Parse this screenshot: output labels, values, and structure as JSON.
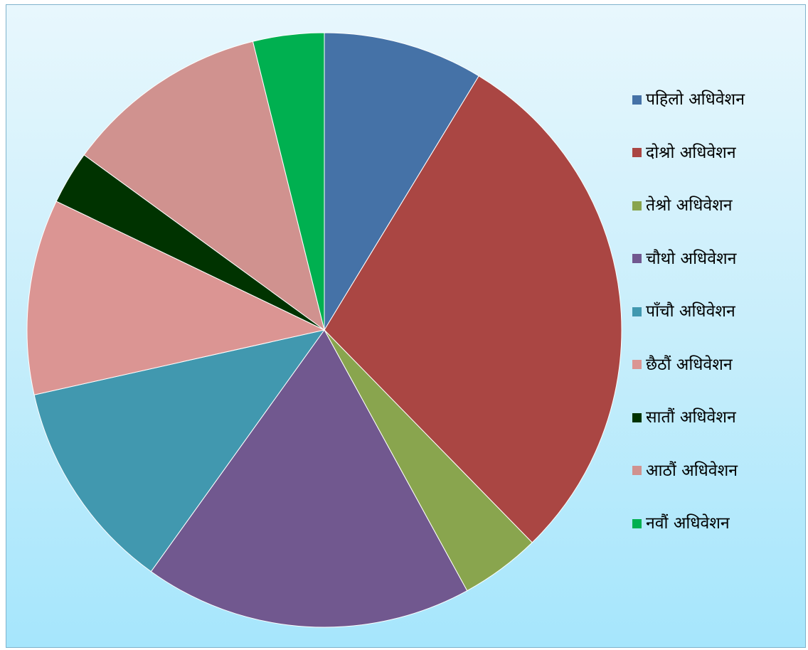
{
  "chart_data": {
    "type": "pie",
    "title": "",
    "legend_position": "right",
    "start_angle_deg": 0,
    "direction": "clockwise",
    "slices": [
      {
        "label": "पहिलो अधिवेशन",
        "value": 9.0,
        "color": "#4572a7"
      },
      {
        "label": "दोश्रो अधिवेशन",
        "value": 30.0,
        "color": "#aa4643"
      },
      {
        "label": "तेश्रो अधिवेशन",
        "value": 4.5,
        "color": "#89a54e"
      },
      {
        "label": "चौथो अधिवेशन",
        "value": 18.5,
        "color": "#71588f"
      },
      {
        "label": "पाँचौ अधिवेशन",
        "value": 12.0,
        "color": "#4198af"
      },
      {
        "label": "छैठौं अधिवेशन",
        "value": 11.0,
        "color": "#db9593"
      },
      {
        "label": "सातौं अधिवेशन",
        "value": 3.0,
        "color": "#003300"
      },
      {
        "label": "आठौं अधिवेशन",
        "value": 11.5,
        "color": "#d0928f"
      },
      {
        "label": "नवौं अधिवेशन",
        "value": 4.0,
        "color": "#00b050"
      }
    ]
  }
}
